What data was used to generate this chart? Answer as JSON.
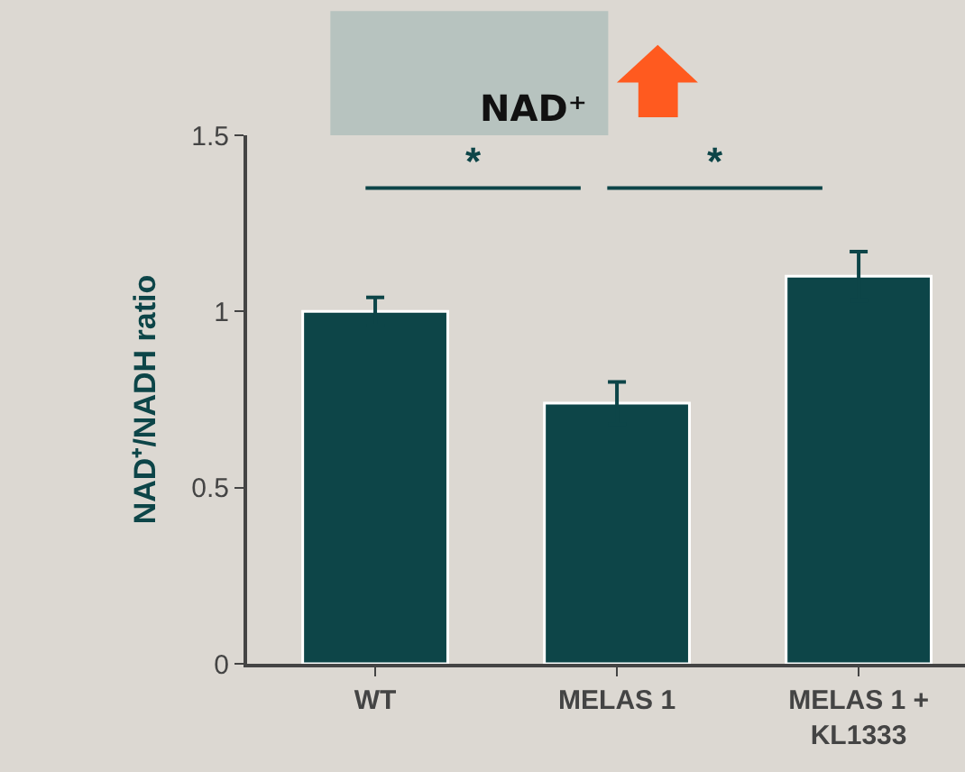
{
  "chart_data": {
    "type": "bar",
    "title": "NAD⁺",
    "categories": [
      "WT",
      "MELAS 1",
      "MELAS 1 + KL1333"
    ],
    "values": [
      1.0,
      0.74,
      1.1
    ],
    "errors": [
      0.04,
      0.06,
      0.07
    ],
    "color": "#0d4548",
    "ylabel": "NAD⁺/NADH ratio",
    "ylim": [
      0,
      1.5
    ],
    "yticks": [
      0,
      0.5,
      1,
      1.5
    ],
    "annotations": [
      "*",
      "*"
    ],
    "grid": false,
    "legend": false
  }
}
